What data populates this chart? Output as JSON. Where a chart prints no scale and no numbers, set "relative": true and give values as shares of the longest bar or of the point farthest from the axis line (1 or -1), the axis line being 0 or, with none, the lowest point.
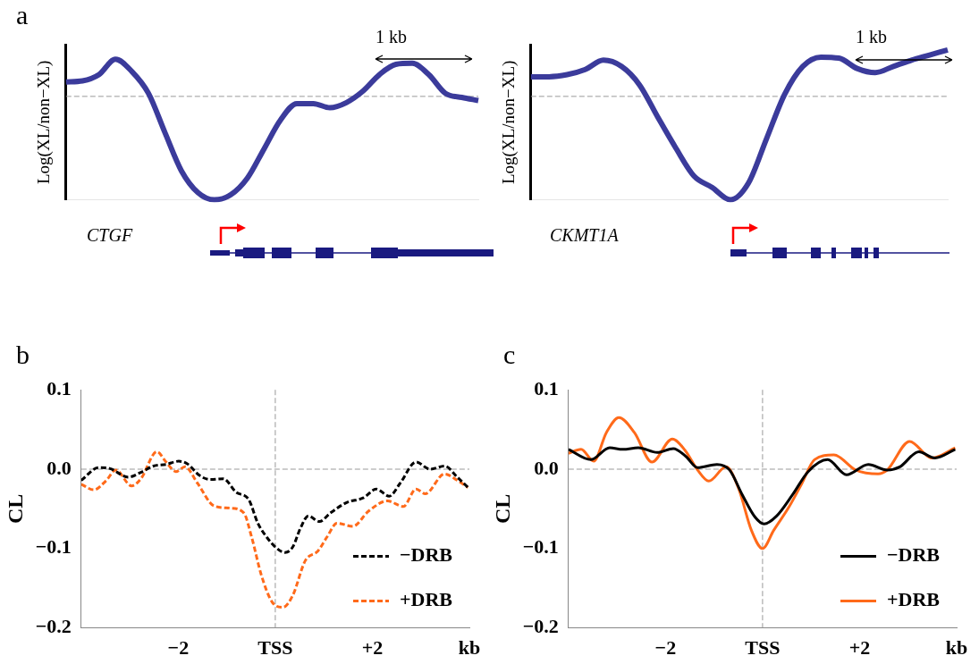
{
  "chart_data": [
    {
      "type": "line",
      "title": "a",
      "ylabel": "Log(XL/non−XL)",
      "relative": true,
      "annotations": [
        "CTGF",
        "1 kb"
      ],
      "categories": [
        null,
        null,
        null,
        null,
        null,
        null,
        null,
        null,
        null,
        null,
        null,
        null,
        null,
        null,
        null,
        null,
        null,
        null,
        null,
        null,
        null,
        null,
        null,
        null,
        null,
        null
      ],
      "series": [
        {
          "color": "#3b3b9b",
          "values": [
            0.14,
            0.15,
            0.21,
            0.36,
            0.24,
            0.03,
            -0.35,
            -0.72,
            -0.93,
            -1.0,
            -0.95,
            -0.79,
            -0.51,
            -0.23,
            -0.07,
            -0.07,
            -0.11,
            -0.06,
            0.05,
            0.21,
            0.31,
            0.32,
            0.21,
            0.03,
            -0.01,
            -0.04
          ]
        }
      ],
      "ref_lines": [
        {
          "axis": "y",
          "value": 0,
          "color": "#999999",
          "line_style": "dashed"
        }
      ]
    },
    {
      "type": "line",
      "ylabel": "Log(XL/non−XL)",
      "relative": true,
      "annotations": [
        "CKMT1A",
        "1 kb"
      ],
      "categories": [
        null,
        null,
        null,
        null,
        null,
        null,
        null,
        null,
        null,
        null,
        null,
        null,
        null,
        null,
        null,
        null,
        null,
        null,
        null,
        null,
        null,
        null,
        null,
        null
      ],
      "series": [
        {
          "color": "#3b3b9b",
          "values": [
            0.19,
            0.19,
            0.21,
            0.26,
            0.35,
            0.29,
            0.11,
            -0.2,
            -0.5,
            -0.77,
            -0.88,
            -1.0,
            -0.84,
            -0.41,
            0.02,
            0.29,
            0.38,
            0.37,
            0.27,
            0.23,
            0.29,
            0.35,
            0.4,
            0.45
          ]
        }
      ],
      "ref_lines": [
        {
          "axis": "y",
          "value": 0,
          "color": "#999999",
          "line_style": "dashed"
        }
      ]
    },
    {
      "type": "line",
      "title": "b",
      "ylabel": "CL",
      "line_style": "dashed",
      "legend": "bottom right",
      "xlim": [
        -4,
        4
      ],
      "ylim": [
        -0.2,
        0.1
      ],
      "xticks": [
        {
          "value": -2,
          "label": "−2"
        },
        {
          "value": 0,
          "label": "TSS"
        },
        {
          "value": 2,
          "label": "+2"
        },
        {
          "value": 4,
          "label": "kb"
        }
      ],
      "yticks": [
        {
          "value": -0.2,
          "label": "−0.2"
        },
        {
          "value": -0.1,
          "label": "−0.1"
        },
        {
          "value": 0,
          "label": "0.0"
        },
        0.1
      ],
      "series": [
        {
          "name": "−DRB",
          "color": "#000000",
          "x": [
            -4.0,
            -3.64,
            -3.42,
            -3.03,
            -2.77,
            -2.51,
            -2.25,
            -1.99,
            -1.82,
            -1.56,
            -1.34,
            -1.07,
            -0.81,
            -0.55,
            -0.36,
            -0.16,
            0,
            0.2,
            0.36,
            0.52,
            0.68,
            0.91,
            1.14,
            1.47,
            1.82,
            2.08,
            2.35,
            2.57,
            2.9,
            3.19,
            3.49,
            3.75,
            3.97
          ],
          "values": [
            -0.014,
            0.002,
            0.001,
            -0.01,
            -0.004,
            0.004,
            0.006,
            0.01,
            0.007,
            -0.008,
            -0.013,
            -0.012,
            -0.029,
            -0.038,
            -0.068,
            -0.087,
            -0.098,
            -0.105,
            -0.098,
            -0.074,
            -0.059,
            -0.066,
            -0.055,
            -0.042,
            -0.036,
            -0.025,
            -0.034,
            -0.018,
            0.009,
            0.0,
            0.004,
            -0.01,
            -0.023
          ]
        },
        {
          "name": "+DRB",
          "color": "#ff6a1a",
          "x": [
            -4.0,
            -3.74,
            -3.48,
            -3.29,
            -2.96,
            -2.77,
            -2.44,
            -2.25,
            -2.05,
            -1.86,
            -1.6,
            -1.27,
            -0.94,
            -0.65,
            -0.49,
            -0.29,
            -0.07,
            0.16,
            0.36,
            0.62,
            0.88,
            1.07,
            1.27,
            1.6,
            1.92,
            2.31,
            2.64,
            2.9,
            3.09,
            3.49,
            3.75,
            3.97
          ],
          "values": [
            -0.019,
            -0.026,
            -0.014,
            -0.001,
            -0.021,
            -0.012,
            0.022,
            0.009,
            -0.003,
            0.003,
            -0.018,
            -0.046,
            -0.049,
            -0.055,
            -0.085,
            -0.133,
            -0.167,
            -0.174,
            -0.159,
            -0.115,
            -0.103,
            -0.085,
            -0.068,
            -0.072,
            -0.053,
            -0.04,
            -0.047,
            -0.025,
            -0.031,
            -0.006,
            -0.014,
            -0.023
          ]
        }
      ],
      "ref_lines": [
        {
          "axis": "x",
          "value": 0,
          "color": "#999999",
          "line_style": "dashed"
        },
        {
          "axis": "y",
          "value": 0,
          "color": "#999999",
          "line_style": "dashed"
        }
      ]
    },
    {
      "type": "line",
      "title": "c",
      "ylabel": "CL",
      "line_style": "solid",
      "legend": "bottom right",
      "xlim": [
        -4,
        4
      ],
      "ylim": [
        -0.2,
        0.1
      ],
      "xticks": [
        {
          "value": -2,
          "label": "−2"
        },
        {
          "value": 0,
          "label": "TSS"
        },
        {
          "value": 2,
          "label": "+2"
        },
        {
          "value": 4,
          "label": "kb"
        }
      ],
      "yticks": [
        {
          "value": -0.2,
          "label": "−0.2"
        },
        {
          "value": -0.1,
          "label": "−0.1"
        },
        {
          "value": 0,
          "label": "0.0"
        },
        0.1
      ],
      "series": [
        {
          "name": "−DRB",
          "color": "#000000",
          "x": [
            -4.0,
            -3.54,
            -3.15,
            -2.88,
            -2.56,
            -2.17,
            -1.84,
            -1.58,
            -1.34,
            -0.94,
            -0.68,
            -0.42,
            -0.16,
            0.03,
            0.29,
            0.62,
            0.94,
            1.34,
            1.73,
            2.18,
            2.57,
            2.83,
            3.22,
            3.55,
            3.97
          ],
          "values": [
            0.025,
            0.012,
            0.027,
            0.025,
            0.027,
            0.021,
            0.026,
            0.016,
            0.002,
            0.006,
            -0.001,
            -0.032,
            -0.06,
            -0.069,
            -0.059,
            -0.032,
            -0.003,
            0.012,
            -0.007,
            0.006,
            -0.001,
            0.003,
            0.022,
            0.014,
            0.025
          ]
        },
        {
          "name": "+DRB",
          "color": "#ff6a1a",
          "x": [
            -4.0,
            -3.74,
            -3.48,
            -3.22,
            -2.96,
            -2.64,
            -2.28,
            -1.86,
            -1.6,
            -1.34,
            -1.11,
            -0.75,
            -0.49,
            -0.23,
            0,
            0.23,
            0.55,
            0.81,
            1.07,
            1.47,
            1.92,
            2.38,
            2.57,
            3.03,
            3.49,
            3.97
          ],
          "values": [
            0.02,
            0.025,
            0.01,
            0.046,
            0.065,
            0.046,
            0.009,
            0.038,
            0.024,
            -0.001,
            -0.015,
            0.003,
            -0.025,
            -0.077,
            -0.1,
            -0.077,
            -0.047,
            -0.018,
            0.012,
            0.018,
            -0.001,
            -0.006,
            -0.001,
            0.035,
            0.014,
            0.027
          ]
        }
      ],
      "ref_lines": [
        {
          "axis": "x",
          "value": 0,
          "color": "#999999",
          "line_style": "dashed"
        },
        {
          "axis": "y",
          "value": 0,
          "color": "#999999",
          "line_style": "dashed"
        }
      ]
    }
  ]
}
